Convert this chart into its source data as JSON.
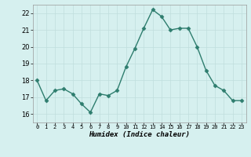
{
  "x": [
    0,
    1,
    2,
    3,
    4,
    5,
    6,
    7,
    8,
    9,
    10,
    11,
    12,
    13,
    14,
    15,
    16,
    17,
    18,
    19,
    20,
    21,
    22,
    23
  ],
  "y": [
    18.0,
    16.8,
    17.4,
    17.5,
    17.2,
    16.6,
    16.1,
    17.2,
    17.1,
    17.4,
    18.8,
    19.9,
    21.1,
    22.2,
    21.8,
    21.0,
    21.1,
    21.1,
    20.0,
    18.6,
    17.7,
    17.4,
    16.8,
    16.8
  ],
  "xlabel": "Humidex (Indice chaleur)",
  "ylim": [
    15.5,
    22.5
  ],
  "xlim": [
    -0.5,
    23.5
  ],
  "yticks": [
    16,
    17,
    18,
    19,
    20,
    21,
    22
  ],
  "xtick_labels": [
    "0",
    "1",
    "2",
    "3",
    "4",
    "5",
    "6",
    "7",
    "8",
    "9",
    "10",
    "11",
    "12",
    "13",
    "14",
    "15",
    "16",
    "17",
    "18",
    "19",
    "20",
    "21",
    "22",
    "23"
  ],
  "line_color": "#2e7d6e",
  "bg_color": "#d6f0ef",
  "grid_color": "#c0dedd",
  "marker": "D",
  "marker_size": 2.5,
  "line_width": 1.0
}
